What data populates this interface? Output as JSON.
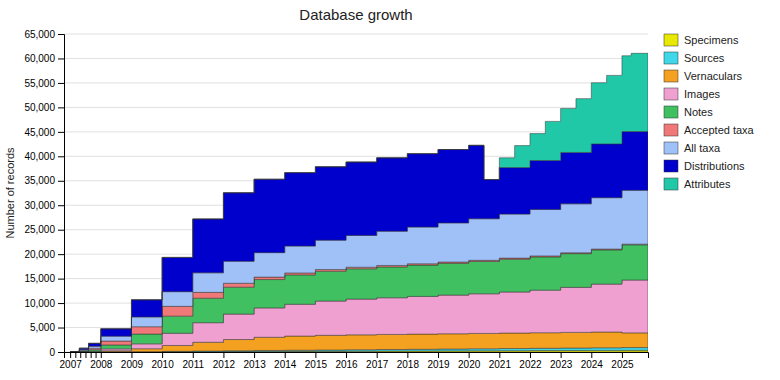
{
  "chart_data": {
    "type": "area",
    "stacked": true,
    "title": "Database growth",
    "ylabel": "Number of records",
    "grid": true,
    "legend": "right",
    "xlim": [
      2006.8,
      2025.85
    ],
    "xticks": [
      2007,
      {
        "value": 2007.17,
        "label": null
      },
      {
        "value": 2007.33,
        "label": null
      },
      {
        "value": 2007.5,
        "label": null
      },
      {
        "value": 2007.67,
        "label": null
      },
      {
        "value": 2007.83,
        "label": null
      },
      2008,
      2009,
      2010,
      2011,
      2012,
      2013,
      2014,
      2015,
      2016,
      2017,
      2018,
      2019,
      2020,
      2021,
      2022,
      2023,
      2024,
      2025
    ],
    "ylim": [
      0,
      65000
    ],
    "yticks": [
      0,
      {
        "value": 5000,
        "label": "5,000"
      },
      {
        "value": 10000,
        "label": "10,000"
      },
      {
        "value": 15000,
        "label": "15,000"
      },
      {
        "value": 20000,
        "label": "20,000"
      },
      {
        "value": 25000,
        "label": "25,000"
      },
      {
        "value": 30000,
        "label": "30,000"
      },
      {
        "value": 35000,
        "label": "35,000"
      },
      {
        "value": 40000,
        "label": "40,000"
      },
      {
        "value": 45000,
        "label": "45,000"
      },
      {
        "value": 50000,
        "label": "50,000"
      },
      {
        "value": 55000,
        "label": "55,000"
      },
      {
        "value": 60000,
        "label": "60,000"
      },
      {
        "value": 65000,
        "label": "65,000"
      }
    ],
    "series": [
      {
        "name": "Specimens",
        "color": "#e8e800",
        "x": [
          2007.0,
          2007.3,
          2007.6,
          2008.0,
          2009.0,
          2010.0,
          2011.0,
          2012.0,
          2013.0,
          2014.0,
          2015.0,
          2016.0,
          2017.0,
          2018.0,
          2019.0,
          2020.0,
          2021.0,
          2022.0,
          2023.0,
          2024.0,
          2025.0,
          2025.8
        ],
        "values": [
          0,
          5,
          10,
          20,
          30,
          50,
          70,
          90,
          110,
          130,
          150,
          170,
          190,
          210,
          230,
          250,
          270,
          290,
          310,
          330,
          350,
          350
        ]
      },
      {
        "name": "Sources",
        "color": "#40d8e8",
        "x": [
          2007.0,
          2007.3,
          2007.6,
          2008.0,
          2009.0,
          2010.0,
          2011.0,
          2012.0,
          2013.0,
          2014.0,
          2015.0,
          2016.0,
          2017.0,
          2018.0,
          2019.0,
          2020.0,
          2021.0,
          2022.0,
          2023.0,
          2024.0,
          2025.0,
          2025.8
        ],
        "values": [
          0,
          5,
          10,
          20,
          40,
          80,
          120,
          160,
          200,
          230,
          260,
          290,
          320,
          350,
          380,
          410,
          440,
          470,
          500,
          530,
          560,
          560
        ]
      },
      {
        "name": "Vernaculars",
        "color": "#f4a020",
        "x": [
          2007.0,
          2007.3,
          2007.6,
          2008.0,
          2009.0,
          2010.0,
          2011.0,
          2012.0,
          2013.0,
          2014.0,
          2015.0,
          2016.0,
          2017.0,
          2018.0,
          2019.0,
          2020.0,
          2021.0,
          2022.0,
          2023.0,
          2024.0,
          2025.0,
          2025.8
        ],
        "values": [
          0,
          20,
          50,
          200,
          600,
          1200,
          1800,
          2300,
          2700,
          2900,
          3000,
          3050,
          3080,
          3100,
          3120,
          3140,
          3160,
          3180,
          3200,
          3220,
          3000,
          3000
        ]
      },
      {
        "name": "Images",
        "color": "#f0a0d0",
        "x": [
          2007.0,
          2007.3,
          2007.6,
          2008.0,
          2009.0,
          2010.0,
          2011.0,
          2012.0,
          2013.0,
          2014.0,
          2015.0,
          2016.0,
          2017.0,
          2018.0,
          2019.0,
          2020.0,
          2021.0,
          2022.0,
          2023.0,
          2024.0,
          2025.0,
          2025.8
        ],
        "values": [
          0,
          50,
          100,
          400,
          1000,
          2500,
          4000,
          5200,
          6000,
          6500,
          7000,
          7300,
          7500,
          7700,
          7900,
          8100,
          8400,
          8700,
          9200,
          9800,
          10800,
          10800
        ]
      },
      {
        "name": "Notes",
        "color": "#40c060",
        "x": [
          2007.0,
          2007.3,
          2007.6,
          2008.0,
          2009.0,
          2010.0,
          2011.0,
          2012.0,
          2013.0,
          2014.0,
          2015.0,
          2016.0,
          2017.0,
          2018.0,
          2019.0,
          2020.0,
          2021.0,
          2022.0,
          2023.0,
          2024.0,
          2025.0,
          2025.8
        ],
        "values": [
          0,
          100,
          300,
          800,
          2000,
          3500,
          5000,
          5500,
          5800,
          6000,
          6100,
          6200,
          6300,
          6400,
          6500,
          6600,
          6700,
          6800,
          6900,
          7000,
          7200,
          7200
        ]
      },
      {
        "name": "Accepted taxa",
        "color": "#f07878",
        "x": [
          2007.0,
          2007.3,
          2007.6,
          2008.0,
          2009.0,
          2010.0,
          2011.0,
          2012.0,
          2013.0,
          2014.0,
          2015.0,
          2016.0,
          2017.0,
          2018.0,
          2019.0,
          2020.0,
          2021.0,
          2022.0,
          2023.0,
          2024.0,
          2025.0,
          2025.8
        ],
        "values": [
          0,
          100,
          300,
          800,
          1500,
          2000,
          1200,
          800,
          500,
          400,
          350,
          320,
          300,
          280,
          260,
          240,
          220,
          200,
          180,
          160,
          140,
          140
        ]
      },
      {
        "name": "All taxa",
        "color": "#a0c0f8",
        "x": [
          2007.0,
          2007.3,
          2007.6,
          2008.0,
          2009.0,
          2010.0,
          2011.0,
          2012.0,
          2013.0,
          2014.0,
          2015.0,
          2016.0,
          2017.0,
          2018.0,
          2019.0,
          2020.0,
          2021.0,
          2022.0,
          2023.0,
          2024.0,
          2025.0,
          2025.8
        ],
        "values": [
          0,
          200,
          400,
          1000,
          2000,
          3000,
          4000,
          4500,
          5000,
          5500,
          6000,
          6500,
          7000,
          7500,
          8000,
          8500,
          9000,
          9500,
          10000,
          10500,
          11000,
          11000
        ]
      },
      {
        "name": "Distributions",
        "color": "#0000cc",
        "x": [
          2007.0,
          2007.3,
          2007.6,
          2008.0,
          2009.0,
          2010.0,
          2011.0,
          2012.0,
          2013.0,
          2014.0,
          2015.0,
          2016.0,
          2017.0,
          2018.0,
          2019.0,
          2020.0,
          2020.5,
          2021.0,
          2022.0,
          2023.0,
          2024.0,
          2025.0,
          2025.8
        ],
        "values": [
          0,
          300,
          600,
          1500,
          3500,
          7000,
          11000,
          14000,
          15000,
          15000,
          15000,
          15000,
          15000,
          15000,
          15000,
          15000,
          8000,
          9500,
          10000,
          10500,
          11000,
          12000,
          12000
        ]
      },
      {
        "name": "Attributes",
        "color": "#20c8a8",
        "x": [
          2007.0,
          2020.0,
          2020.9,
          2021.0,
          2021.5,
          2022.0,
          2022.5,
          2023.0,
          2023.5,
          2024.0,
          2024.5,
          2025.0,
          2025.3,
          2025.8
        ],
        "values": [
          0,
          0,
          0,
          2000,
          4500,
          5500,
          8000,
          9000,
          11000,
          12500,
          14000,
          15500,
          16000,
          16000
        ]
      }
    ]
  }
}
